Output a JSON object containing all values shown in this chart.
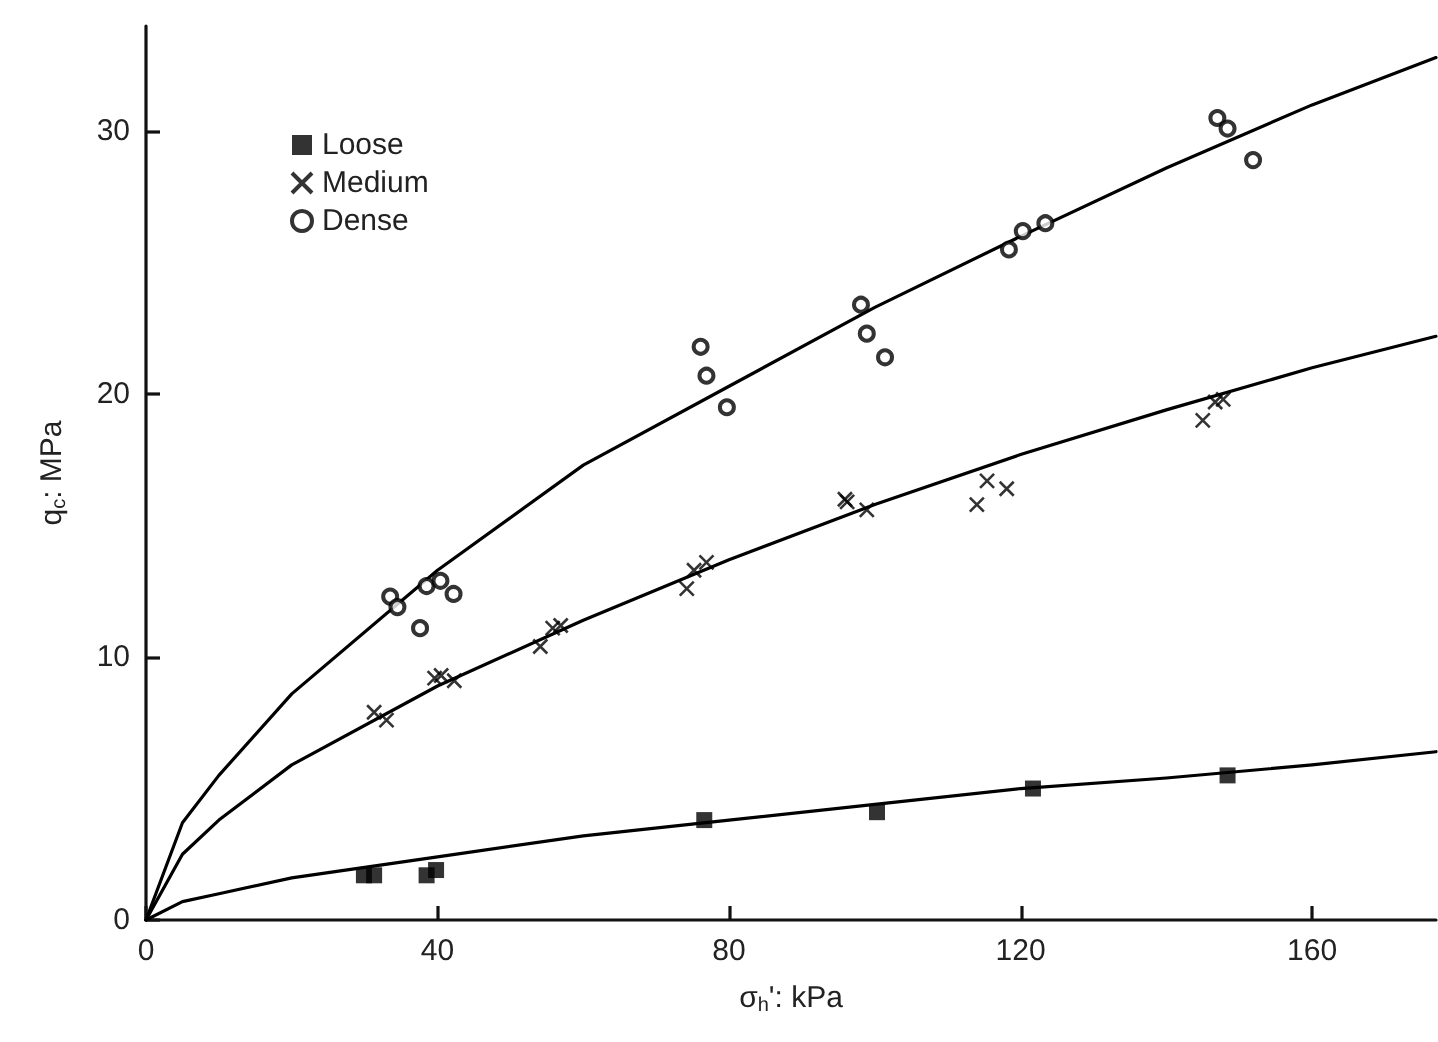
{
  "chart_data": {
    "type": "scatter",
    "xlabel": "σ$_{h}$': kPa",
    "ylabel": "q$_{c}$: MPa",
    "xlim": [
      0,
      177
    ],
    "ylim": [
      0,
      34
    ],
    "xticks": [
      0,
      40,
      80,
      120,
      160
    ],
    "yticks": [
      0,
      10,
      20,
      30
    ],
    "grid": false,
    "legend": "top left",
    "series": [
      {
        "name": "Loose",
        "color": "#000000",
        "marker": "square",
        "x": [
          29.9,
          31.3,
          38.5,
          39.8,
          76.6,
          100.3,
          121.7,
          148.4
        ],
        "values": [
          1.7,
          1.7,
          1.7,
          1.9,
          3.8,
          4.1,
          5.0,
          5.5
        ]
      },
      {
        "name": "Medium",
        "color": "#000000",
        "marker": "cross",
        "x": [
          31.3,
          33.0,
          39.6,
          40.5,
          42.3,
          54.1,
          55.8,
          56.9,
          74.2,
          75.2,
          76.9,
          95.9,
          96.2,
          98.9,
          114.0,
          115.4,
          118.1,
          145.0,
          146.7,
          147.8
        ],
        "values": [
          7.9,
          7.6,
          9.2,
          9.3,
          9.1,
          10.4,
          11.1,
          11.2,
          12.6,
          13.3,
          13.6,
          16.0,
          15.9,
          15.6,
          15.8,
          16.7,
          16.4,
          19.0,
          19.7,
          19.8
        ]
      },
      {
        "name": "Dense",
        "color": "#000000",
        "marker": "circle",
        "x": [
          33.5,
          34.5,
          37.6,
          38.5,
          40.4,
          42.2,
          76.1,
          76.9,
          79.7,
          98.1,
          98.9,
          101.4,
          118.4,
          120.3,
          123.4,
          147.0,
          148.4,
          151.9
        ],
        "values": [
          12.3,
          11.9,
          11.1,
          12.7,
          12.9,
          12.4,
          21.8,
          20.7,
          19.5,
          23.4,
          22.3,
          21.4,
          25.5,
          26.2,
          26.5,
          30.5,
          30.1,
          28.9
        ]
      },
      {
        "type": "line",
        "color": "#000000",
        "marker": "none",
        "line_style": "solid",
        "x": [
          0,
          5,
          10,
          20,
          40,
          60,
          80,
          100,
          120,
          140,
          160,
          177
        ],
        "values": [
          0,
          0.7,
          1.0,
          1.6,
          2.4,
          3.2,
          3.8,
          4.4,
          5.0,
          5.4,
          5.9,
          6.4
        ]
      },
      {
        "type": "line",
        "color": "#000000",
        "marker": "none",
        "line_style": "solid",
        "x": [
          0,
          5,
          10,
          20,
          40,
          60,
          80,
          100,
          120,
          140,
          160,
          177
        ],
        "values": [
          0,
          2.5,
          3.8,
          5.9,
          8.9,
          11.4,
          13.7,
          15.8,
          17.7,
          19.4,
          21.0,
          22.2
        ]
      },
      {
        "type": "line",
        "color": "#000000",
        "marker": "none",
        "line_style": "solid",
        "x": [
          0,
          5,
          10,
          20,
          40,
          60,
          80,
          100,
          120,
          140,
          160,
          177
        ],
        "values": [
          0,
          3.7,
          5.5,
          8.6,
          13.3,
          17.3,
          20.3,
          23.3,
          26.0,
          28.6,
          31.0,
          32.8
        ]
      }
    ]
  }
}
